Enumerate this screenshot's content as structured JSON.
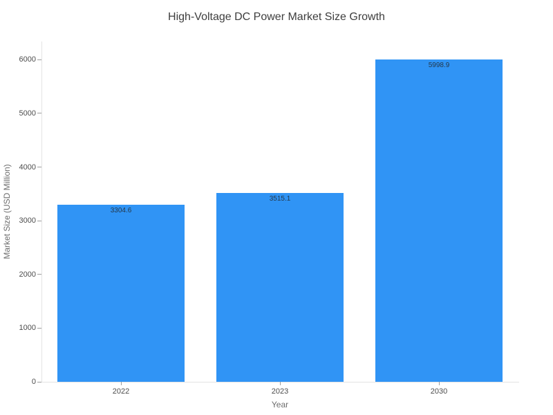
{
  "chart_data": {
    "type": "bar",
    "title": "High-Voltage DC Power Market Size Growth",
    "xlabel": "Year",
    "ylabel": "Market Size (USD Million)",
    "categories": [
      "2022",
      "2023",
      "2030"
    ],
    "values": [
      3304.6,
      3515.1,
      5998.9
    ],
    "value_labels": [
      "3304.6",
      "3515.1",
      "5998.9"
    ],
    "yticks": [
      0,
      1000,
      2000,
      3000,
      4000,
      5000,
      6000
    ],
    "ytick_labels": [
      "0",
      "1000",
      "2000",
      "3000",
      "4000",
      "5000",
      "6000"
    ],
    "ylim": [
      0,
      6340
    ],
    "grid": false,
    "legend": false,
    "bar_value_position": "inside-top"
  },
  "colors": {
    "background": "#ffffff",
    "bar": "#3094f5",
    "bar_label": "#24384a",
    "title": "#3d3d3d",
    "tick_label": "#4c4c4c",
    "axis_title": "#6d6d6d",
    "axis_line": "#e3e3e3",
    "tick_mark": "#9c9c9c"
  }
}
